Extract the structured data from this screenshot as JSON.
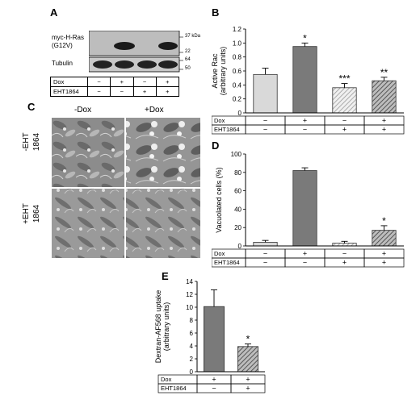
{
  "panels": {
    "a": "A",
    "b": "B",
    "c": "C",
    "d": "D",
    "e": "E"
  },
  "blot": {
    "row1_label_line1": "myc-H-Ras",
    "row1_label_line2": "(G12V)",
    "row2_label": "Tubulin",
    "markers": [
      "37 kDa",
      "22",
      "64",
      "50"
    ],
    "conditions": {
      "dox_label": "Dox",
      "eht_label": "EHT1864",
      "dox": [
        "−",
        "+",
        "−",
        "+"
      ],
      "eht": [
        "−",
        "−",
        "+",
        "+"
      ]
    }
  },
  "micrographs": {
    "col_labels": [
      "-Dox",
      "+Dox"
    ],
    "row_labels": [
      "-EHT\n1864",
      "+EHT\n1864"
    ]
  },
  "chart_data": [
    {
      "id": "B",
      "type": "bar",
      "ylabel": "Active Rac\n(arbitrary units)",
      "ylim": [
        0,
        1.2
      ],
      "yticks": [
        "0",
        "0.2",
        "0.4",
        "0.6",
        "0.8",
        "1.0",
        "1.2"
      ],
      "values": [
        0.55,
        0.95,
        0.36,
        0.46
      ],
      "errors": [
        0.09,
        0.05,
        0.06,
        0.05
      ],
      "significance": [
        "",
        "*",
        "***",
        "**"
      ],
      "fills": [
        "#d9d9d9",
        "#7a7a7a",
        "hatch-light",
        "hatch-dark"
      ],
      "conditions": {
        "dox_label": "Dox",
        "eht_label": "EHT1864",
        "dox": [
          "−",
          "+",
          "−",
          "+"
        ],
        "eht": [
          "−",
          "−",
          "+",
          "+"
        ]
      }
    },
    {
      "id": "D",
      "type": "bar",
      "ylabel": "Vacuolated cells (%)",
      "ylim": [
        0,
        100
      ],
      "yticks": [
        "0",
        "20",
        "40",
        "60",
        "80",
        "100"
      ],
      "values": [
        4,
        82,
        3,
        17
      ],
      "errors": [
        2,
        3,
        2,
        5
      ],
      "significance": [
        "",
        "",
        "",
        "*"
      ],
      "fills": [
        "#d9d9d9",
        "#7a7a7a",
        "hatch-light",
        "hatch-dark"
      ],
      "conditions": {
        "dox_label": "Dox",
        "eht_label": "EHT1864",
        "dox": [
          "−",
          "+",
          "−",
          "+"
        ],
        "eht": [
          "−",
          "−",
          "+",
          "+"
        ]
      }
    },
    {
      "id": "E",
      "type": "bar",
      "ylabel": "Dextran-AF568 uptake\n(arbitrary units)",
      "ylim": [
        0,
        14
      ],
      "yticks": [
        "0",
        "2",
        "4",
        "6",
        "8",
        "10",
        "12",
        "14"
      ],
      "values": [
        10.1,
        3.9
      ],
      "errors": [
        2.6,
        0.4
      ],
      "significance": [
        "",
        "*"
      ],
      "fills": [
        "#7a7a7a",
        "hatch-dark"
      ],
      "conditions": {
        "dox_label": "Dox",
        "eht_label": "EHT1864",
        "dox": [
          "+",
          "+"
        ],
        "eht": [
          "−",
          "+"
        ]
      }
    }
  ]
}
